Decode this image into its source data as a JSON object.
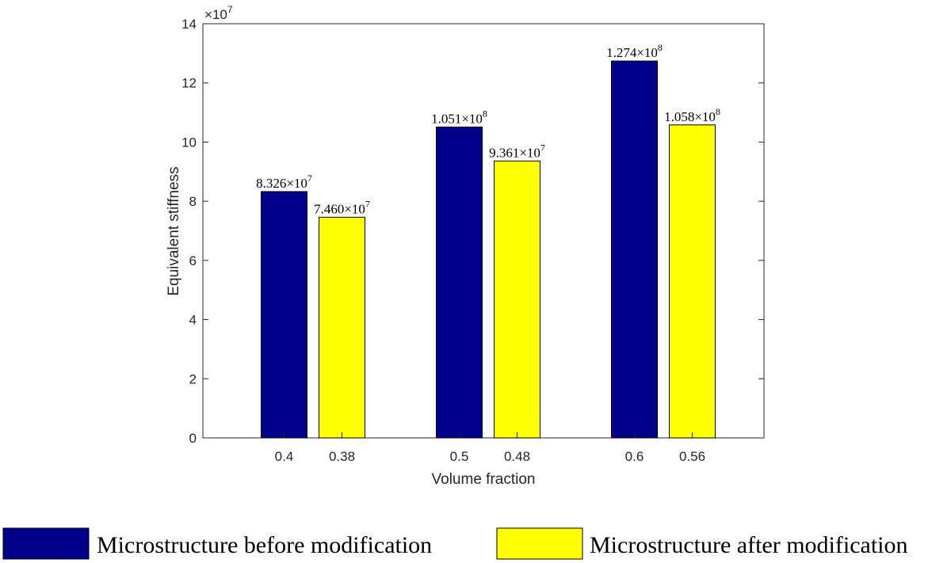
{
  "chart_data": {
    "type": "bar",
    "xlabel": "Volume fraction",
    "ylabel": "Equivalent stiffness",
    "y_scale_base": "10",
    "y_scale_exponent": "7",
    "ylim": [
      0,
      14
    ],
    "yticks": [
      "0",
      "2",
      "4",
      "6",
      "8",
      "10",
      "12",
      "14"
    ],
    "groups": [
      {
        "bars": [
          {
            "series": "before",
            "x_label": "0.4",
            "value": 8.326,
            "label_mantissa": "8.326×10",
            "label_exp": "7"
          },
          {
            "series": "after",
            "x_label": "0.38",
            "value": 7.46,
            "label_mantissa": "7.460×10",
            "label_exp": "7"
          }
        ]
      },
      {
        "bars": [
          {
            "series": "before",
            "x_label": "0.5",
            "value": 10.51,
            "label_mantissa": "1.051×10",
            "label_exp": "8"
          },
          {
            "series": "after",
            "x_label": "0.48",
            "value": 9.361,
            "label_mantissa": "9.361×10",
            "label_exp": "7"
          }
        ]
      },
      {
        "bars": [
          {
            "series": "before",
            "x_label": "0.6",
            "value": 12.74,
            "label_mantissa": "1.274×10",
            "label_exp": "8"
          },
          {
            "series": "after",
            "x_label": "0.56",
            "value": 10.58,
            "label_mantissa": "1.058×10",
            "label_exp": "8"
          }
        ]
      }
    ],
    "series": [
      {
        "key": "before",
        "name": "Microstructure before modification",
        "color": "#00008b"
      },
      {
        "key": "after",
        "name": "Microstructure after modification",
        "color": "#ffff00"
      }
    ],
    "legend_position": "bottom",
    "grid": false
  }
}
